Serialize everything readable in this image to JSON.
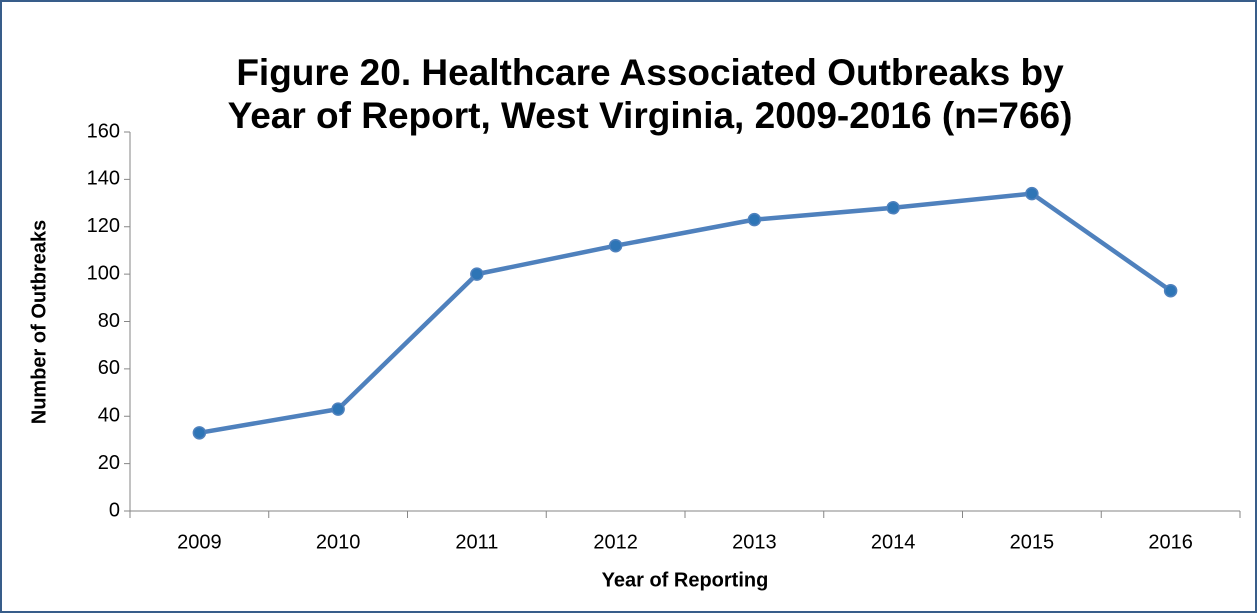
{
  "chart_data": {
    "type": "line",
    "title": [
      "Figure 20. Healthcare Associated Outbreaks by",
      "Year of Report, West Virginia, 2009-2016 (n=766)"
    ],
    "x_label": "Year of Reporting",
    "y_label": "Number of Outbreaks",
    "categories": [
      "2009",
      "2010",
      "2011",
      "2012",
      "2013",
      "2014",
      "2015",
      "2016"
    ],
    "values": [
      33,
      43,
      100,
      112,
      123,
      128,
      134,
      93
    ],
    "color": "#4f81bd",
    "marker_color": "#2e75b6",
    "ylim": [
      0,
      160
    ],
    "yticks": [
      0,
      20,
      40,
      60,
      80,
      100,
      120,
      140,
      160
    ],
    "grid": false
  }
}
